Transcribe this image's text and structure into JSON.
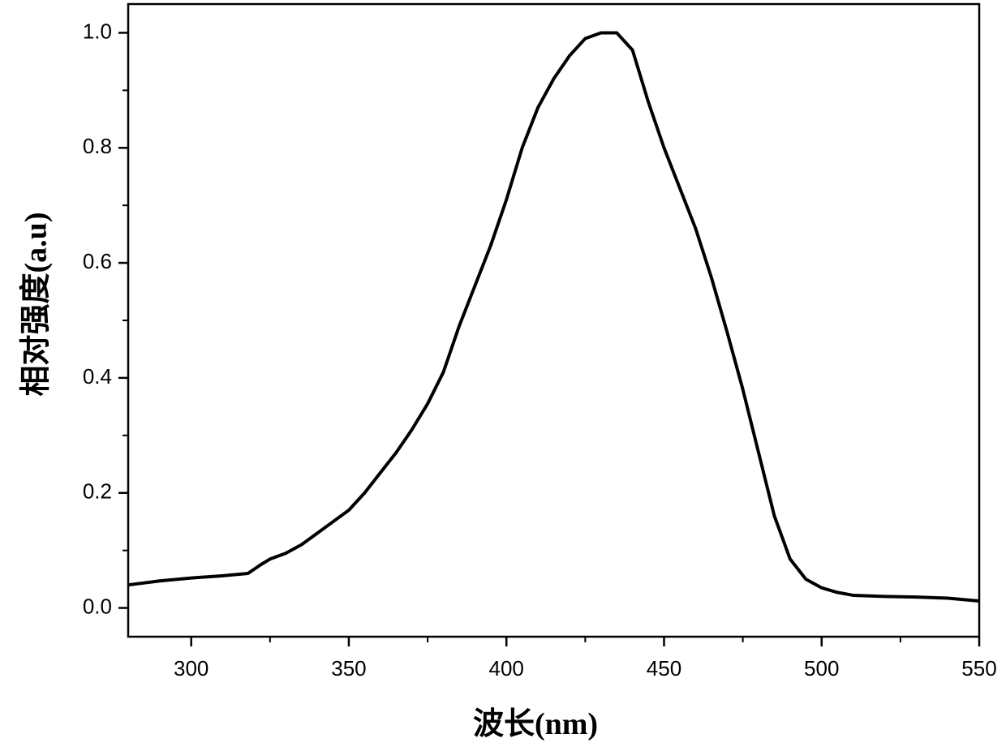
{
  "chart_data": {
    "type": "line",
    "x_label": "波长(nm)",
    "y_label": "相对强度(a.u)",
    "x": [
      280,
      290,
      300,
      310,
      318,
      322,
      325,
      330,
      335,
      340,
      345,
      350,
      355,
      360,
      365,
      370,
      375,
      380,
      385,
      390,
      395,
      400,
      405,
      410,
      415,
      420,
      425,
      430,
      435,
      440,
      445,
      450,
      455,
      460,
      465,
      470,
      475,
      480,
      485,
      490,
      495,
      500,
      505,
      510,
      520,
      530,
      540,
      550
    ],
    "series": [
      {
        "color": "#000000",
        "values": [
          0.04,
          0.047,
          0.052,
          0.056,
          0.06,
          0.075,
          0.085,
          0.095,
          0.11,
          0.13,
          0.15,
          0.17,
          0.2,
          0.235,
          0.27,
          0.31,
          0.355,
          0.41,
          0.49,
          0.56,
          0.63,
          0.71,
          0.8,
          0.87,
          0.92,
          0.96,
          0.99,
          1.0,
          1.0,
          0.97,
          0.88,
          0.8,
          0.73,
          0.66,
          0.575,
          0.48,
          0.38,
          0.27,
          0.16,
          0.085,
          0.05,
          0.035,
          0.027,
          0.022,
          0.02,
          0.019,
          0.017,
          0.012
        ]
      }
    ],
    "xlim": [
      280,
      550
    ],
    "xticks": [
      300,
      350,
      400,
      450,
      500,
      550
    ],
    "ylim": [
      -0.05,
      1.05
    ],
    "yticks": [
      {
        "value": 0,
        "label": "0.0"
      },
      0.2,
      0.4,
      0.6,
      0.8,
      {
        "value": 1,
        "label": "1.0"
      }
    ],
    "grid": false
  }
}
